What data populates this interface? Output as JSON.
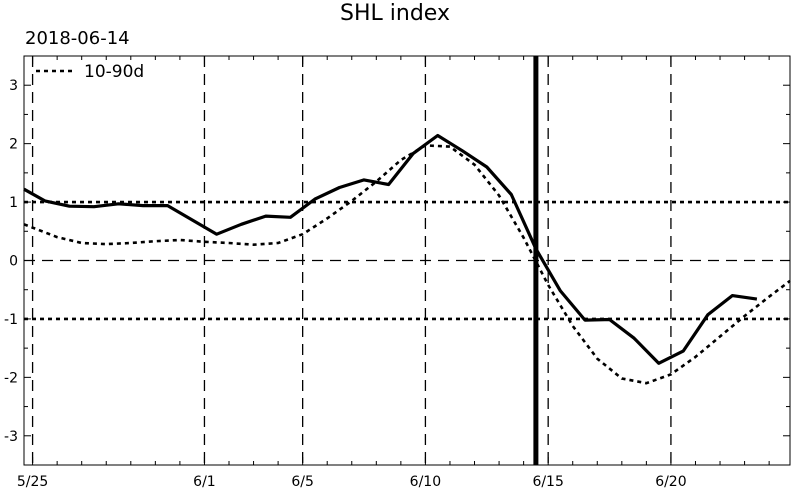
{
  "chart_data": {
    "type": "line",
    "title": "SHL index",
    "date_label": "2018-06-14",
    "xlabel": "",
    "ylabel": "",
    "xlim": [
      -0.35,
      30.85
    ],
    "ylim": [
      -3.5,
      3.5
    ],
    "x_ticks": [
      {
        "x": 0,
        "label": "5/25"
      },
      {
        "x": 7,
        "label": "6/1"
      },
      {
        "x": 11,
        "label": "6/5"
      },
      {
        "x": 16,
        "label": "6/10"
      },
      {
        "x": 21,
        "label": "6/15"
      },
      {
        "x": 26,
        "label": "6/20"
      }
    ],
    "y_ticks": [
      3,
      2,
      1,
      0,
      -1,
      -2,
      -3
    ],
    "y_tick_labels": [
      "3",
      "2",
      "1",
      "0",
      "-1",
      "-2",
      "-3"
    ],
    "vertical_dashed_x": [
      0,
      7,
      11,
      16,
      21,
      26
    ],
    "reference_lines": {
      "dashed_zero": 0,
      "dotted_levels": [
        1,
        -1
      ]
    },
    "marker_date_x": 20.5,
    "legend": {
      "position": "top-left",
      "entries": [
        {
          "label": "10-90d",
          "style": "dotted"
        }
      ]
    },
    "series": [
      {
        "name": "",
        "style": "solid",
        "x": [
          -0.35,
          0.5,
          1.5,
          2.5,
          3.5,
          4.5,
          5.5,
          7.5,
          8.5,
          9.5,
          10.5,
          11.5,
          12.5,
          13.5,
          14.5,
          15.5,
          16.5,
          17.5,
          18.5,
          19.5,
          20.5,
          21.5,
          22.5,
          23.5,
          24.5,
          25.5,
          26.5,
          27.5,
          28.5,
          29.5
        ],
        "y": [
          1.22,
          1.02,
          0.93,
          0.92,
          0.97,
          0.94,
          0.94,
          0.45,
          0.62,
          0.76,
          0.74,
          1.05,
          1.25,
          1.38,
          1.3,
          1.83,
          2.14,
          1.88,
          1.6,
          1.13,
          0.2,
          -0.52,
          -1.02,
          -1.01,
          -1.33,
          -1.76,
          -1.55,
          -0.93,
          -0.6,
          -0.66
        ]
      },
      {
        "name": "10-90d",
        "style": "dotted",
        "x": [
          -0.35,
          1,
          2,
          3,
          4,
          5,
          6,
          7,
          8,
          9,
          10,
          11,
          12,
          13,
          14,
          15,
          16,
          17,
          18,
          19,
          20,
          21,
          22,
          23,
          24,
          25,
          26,
          27,
          28,
          29,
          30,
          30.85
        ],
        "y": [
          0.62,
          0.4,
          0.3,
          0.28,
          0.3,
          0.33,
          0.35,
          0.32,
          0.3,
          0.27,
          0.3,
          0.45,
          0.72,
          1.02,
          1.35,
          1.72,
          1.97,
          1.95,
          1.64,
          1.11,
          0.39,
          -0.42,
          -1.12,
          -1.68,
          -2.02,
          -2.1,
          -1.95,
          -1.65,
          -1.3,
          -0.95,
          -0.62,
          -0.35
        ]
      }
    ]
  }
}
